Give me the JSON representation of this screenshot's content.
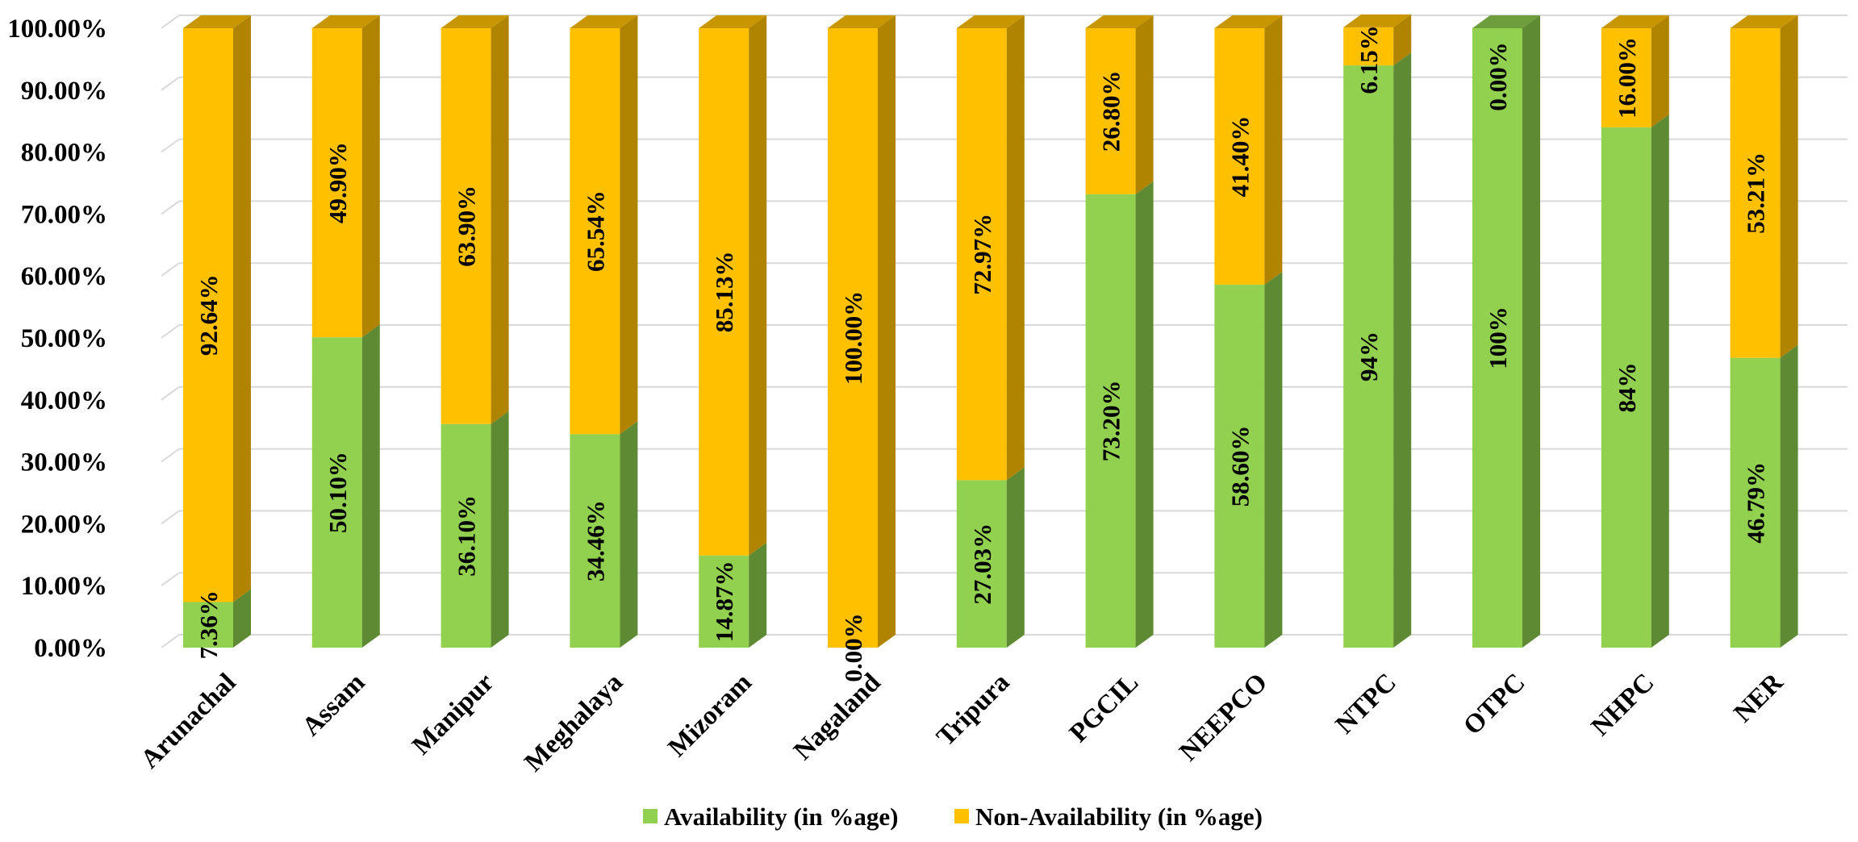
{
  "chart_data": {
    "type": "bar",
    "stacked": true,
    "style_3d": true,
    "title": "",
    "xlabel": "",
    "ylabel": "",
    "ylim": [
      0,
      100
    ],
    "y_ticks": [
      "0.00%",
      "10.00%",
      "20.00%",
      "30.00%",
      "40.00%",
      "50.00%",
      "60.00%",
      "70.00%",
      "80.00%",
      "90.00%",
      "100.00%"
    ],
    "grid": true,
    "legend_position": "bottom",
    "categories": [
      "Arunachal",
      "Assam",
      "Manipur",
      "Meghalaya",
      "Mizoram",
      "Nagaland",
      "Tripura",
      "PGCIL",
      "NEEPCO",
      "NTPC",
      "OTPC",
      "NHPC",
      "NER"
    ],
    "series": [
      {
        "name": "Availability (in %age)",
        "color": "#92d050",
        "side_color": "#5e8a34",
        "values": [
          7.36,
          50.1,
          36.1,
          34.46,
          14.87,
          0.0,
          27.03,
          73.2,
          58.6,
          94,
          100,
          84,
          46.79
        ],
        "labels": [
          "7.36%",
          "50.10%",
          "36.10%",
          "34.46%",
          "14.87%",
          "0.00%",
          "27.03%",
          "73.20%",
          "58.60%",
          "94%",
          "100%",
          "84%",
          "46.79%"
        ]
      },
      {
        "name": "Non-Availability (in %age)",
        "color": "#ffc000",
        "side_color": "#b08400",
        "values": [
          92.64,
          49.9,
          63.9,
          65.54,
          85.13,
          100.0,
          72.97,
          26.8,
          41.4,
          6.15,
          0.0,
          16.0,
          53.21
        ],
        "labels": [
          "92.64%",
          "49.90%",
          "63.90%",
          "65.54%",
          "85.13%",
          "100.00%",
          "72.97%",
          "26.80%",
          "41.40%",
          "6.15%",
          "0.00%",
          "16.00%",
          "53.21%"
        ]
      }
    ]
  }
}
